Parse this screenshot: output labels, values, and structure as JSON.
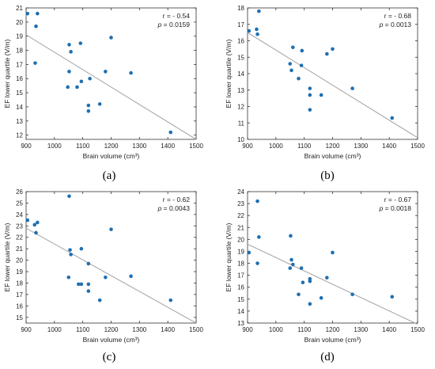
{
  "chart_data": [
    {
      "type": "scatter",
      "panel_label": "(a)",
      "xlabel": "Brain volume (cm³)",
      "ylabel": "EF lower quartile (V/m)",
      "xlim": [
        900,
        1500
      ],
      "ylim": [
        11.7,
        21.0
      ],
      "xticks": [
        900,
        1000,
        1100,
        1200,
        1300,
        1400,
        1500
      ],
      "yticks": [
        12,
        13,
        14,
        15,
        16,
        17,
        18,
        19,
        20,
        21
      ],
      "annotation_r": "r = - 0.54",
      "annotation_p_label": "p",
      "annotation_p_value": " = 0.0159",
      "points": [
        [
          905,
          20.6
        ],
        [
          940,
          20.6
        ],
        [
          935,
          19.7
        ],
        [
          932,
          17.1
        ],
        [
          1052,
          18.4
        ],
        [
          1058,
          17.9
        ],
        [
          1092,
          18.5
        ],
        [
          1200,
          18.9
        ],
        [
          1052,
          16.5
        ],
        [
          1047,
          15.4
        ],
        [
          1080,
          15.4
        ],
        [
          1095,
          15.8
        ],
        [
          1125,
          16.0
        ],
        [
          1180,
          16.5
        ],
        [
          1270,
          16.4
        ],
        [
          1120,
          14.1
        ],
        [
          1120,
          13.7
        ],
        [
          1160,
          14.2
        ],
        [
          1410,
          12.2
        ]
      ],
      "fit_line": [
        [
          900,
          19.1
        ],
        [
          1500,
          11.7
        ]
      ],
      "colors": {
        "marker": "#1f6fb0",
        "fit_line": "#a9a9a9",
        "axis": "#333333"
      }
    },
    {
      "type": "scatter",
      "panel_label": "(b)",
      "xlabel": "Brain volume (cm³)",
      "ylabel": "EF lower quartile (V/m)",
      "xlim": [
        900,
        1500
      ],
      "ylim": [
        10,
        18
      ],
      "xticks": [
        900,
        1000,
        1100,
        1200,
        1300,
        1400,
        1500
      ],
      "yticks": [
        10,
        11,
        12,
        13,
        14,
        15,
        16,
        17,
        18
      ],
      "annotation_r": "r = - 0.68",
      "annotation_p_label": "p",
      "annotation_p_value": " = 0.0013",
      "points": [
        [
          940,
          17.8
        ],
        [
          905,
          16.6
        ],
        [
          932,
          16.7
        ],
        [
          935,
          16.4
        ],
        [
          1060,
          15.6
        ],
        [
          1092,
          15.4
        ],
        [
          1050,
          14.6
        ],
        [
          1055,
          14.2
        ],
        [
          1090,
          14.5
        ],
        [
          1180,
          15.2
        ],
        [
          1200,
          15.5
        ],
        [
          1080,
          13.7
        ],
        [
          1120,
          13.1
        ],
        [
          1120,
          12.7
        ],
        [
          1160,
          12.7
        ],
        [
          1270,
          13.1
        ],
        [
          1120,
          11.8
        ],
        [
          1410,
          11.3
        ]
      ],
      "fit_line": [
        [
          900,
          16.5
        ],
        [
          1500,
          10.1
        ]
      ],
      "colors": {
        "marker": "#1f6fb0",
        "fit_line": "#a9a9a9",
        "axis": "#333333"
      }
    },
    {
      "type": "scatter",
      "panel_label": "(c)",
      "xlabel": "Brain volume (cm³)",
      "ylabel": "EF lower quartile (V/m)",
      "xlim": [
        900,
        1500
      ],
      "ylim": [
        14.5,
        26
      ],
      "xticks": [
        900,
        1000,
        1100,
        1200,
        1300,
        1400,
        1500
      ],
      "yticks": [
        15,
        16,
        17,
        18,
        19,
        20,
        21,
        22,
        23,
        24,
        25,
        26
      ],
      "annotation_r": "r = - 0.62",
      "annotation_p_label": "p",
      "annotation_p_value": " = 0.0043",
      "points": [
        [
          1052,
          25.6
        ],
        [
          905,
          23.5
        ],
        [
          940,
          23.3
        ],
        [
          930,
          23.1
        ],
        [
          935,
          22.4
        ],
        [
          1200,
          22.7
        ],
        [
          1055,
          20.9
        ],
        [
          1058,
          20.5
        ],
        [
          1095,
          21.0
        ],
        [
          1050,
          18.5
        ],
        [
          1085,
          17.9
        ],
        [
          1095,
          17.9
        ],
        [
          1120,
          17.3
        ],
        [
          1120,
          19.7
        ],
        [
          1120,
          17.9
        ],
        [
          1180,
          18.5
        ],
        [
          1270,
          18.6
        ],
        [
          1160,
          16.5
        ],
        [
          1410,
          16.5
        ]
      ],
      "fit_line": [
        [
          900,
          22.8
        ],
        [
          1500,
          14.5
        ]
      ],
      "colors": {
        "marker": "#1f6fb0",
        "fit_line": "#a9a9a9",
        "axis": "#333333"
      }
    },
    {
      "type": "scatter",
      "panel_label": "(d)",
      "xlabel": "Brain volume (cm³)",
      "ylabel": "EF lower quartile (V/m)",
      "xlim": [
        900,
        1500
      ],
      "ylim": [
        13,
        24
      ],
      "xticks": [
        900,
        1000,
        1100,
        1200,
        1300,
        1400,
        1500
      ],
      "yticks": [
        13,
        14,
        15,
        16,
        17,
        18,
        19,
        20,
        21,
        22,
        23,
        24
      ],
      "annotation_r": "r = - 0.67",
      "annotation_p_label": "p",
      "annotation_p_value": " = 0.0018",
      "points": [
        [
          935,
          23.2
        ],
        [
          940,
          20.2
        ],
        [
          1052,
          20.3
        ],
        [
          905,
          18.9
        ],
        [
          935,
          18.0
        ],
        [
          1050,
          17.6
        ],
        [
          1055,
          18.3
        ],
        [
          1060,
          17.9
        ],
        [
          1090,
          17.6
        ],
        [
          1095,
          16.4
        ],
        [
          1120,
          16.5
        ],
        [
          1120,
          16.7
        ],
        [
          1080,
          15.4
        ],
        [
          1120,
          14.6
        ],
        [
          1160,
          15.1
        ],
        [
          1180,
          16.8
        ],
        [
          1200,
          18.9
        ],
        [
          1270,
          15.4
        ],
        [
          1410,
          15.2
        ]
      ],
      "fit_line": [
        [
          900,
          19.6
        ],
        [
          1500,
          12.9
        ]
      ],
      "colors": {
        "marker": "#1f6fb0",
        "fit_line": "#a9a9a9",
        "axis": "#333333"
      }
    }
  ]
}
